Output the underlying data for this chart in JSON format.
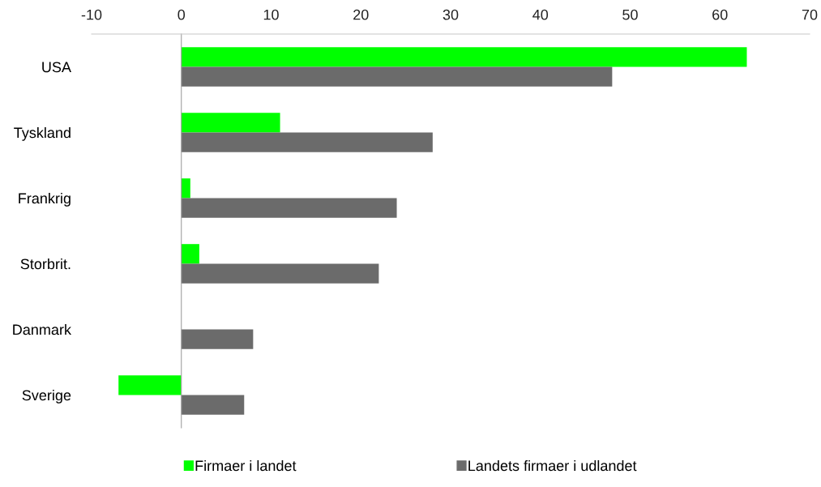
{
  "chart_data": {
    "type": "bar",
    "orientation": "horizontal",
    "categories": [
      "USA",
      "Tyskland",
      "Frankrig",
      "Storbrit.",
      "Danmark",
      "Sverige"
    ],
    "series": [
      {
        "name": "Firmaer i landet",
        "color": "#00ff00",
        "values": [
          63,
          11,
          1,
          2,
          0,
          -7
        ]
      },
      {
        "name": "Landets firmaer i udlandet",
        "color": "#6b6b6b",
        "values": [
          48,
          28,
          24,
          22,
          8,
          7
        ]
      }
    ],
    "xlim": [
      -10,
      70
    ],
    "xticks": [
      -10,
      0,
      10,
      20,
      30,
      40,
      50,
      60,
      70
    ],
    "legend": "bottom"
  }
}
